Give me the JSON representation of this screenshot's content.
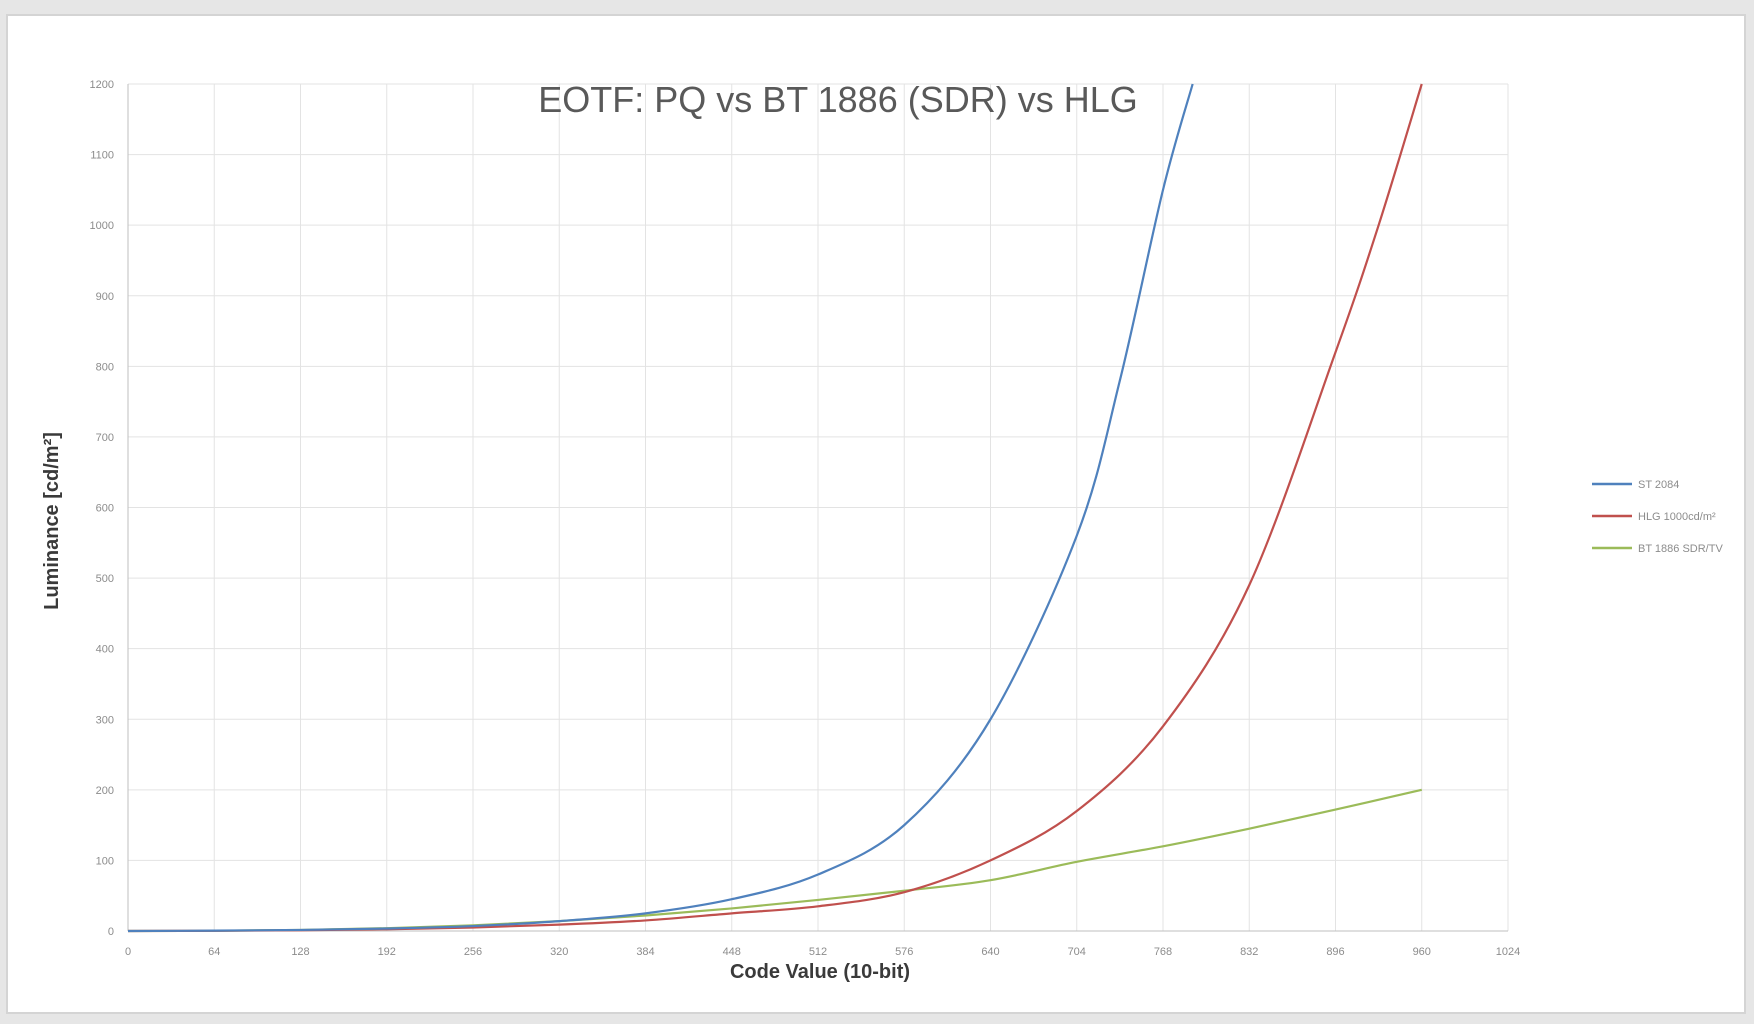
{
  "chart_data": {
    "type": "line",
    "title": "EOTF: PQ vs BT 1886 (SDR) vs HLG",
    "xlabel": "Code Value (10-bit)",
    "ylabel": "Luminance [cd/m²]",
    "xlim": [
      0,
      1024
    ],
    "ylim": [
      0,
      1200
    ],
    "x_ticks": [
      "0",
      "64",
      "128",
      "192",
      "256",
      "320",
      "384",
      "448",
      "512",
      "576",
      "640",
      "704",
      "768",
      "832",
      "896",
      "960",
      "1024"
    ],
    "y_ticks": [
      "0",
      "100",
      "200",
      "300",
      "400",
      "500",
      "600",
      "700",
      "800",
      "900",
      "1000",
      "1100",
      "1200"
    ],
    "grid": true,
    "legend_position": "right",
    "series": [
      {
        "name": "ST 2084",
        "color": "#4f81bd",
        "x": [
          0,
          64,
          128,
          192,
          256,
          320,
          384,
          448,
          512,
          576,
          640,
          704,
          736,
          768,
          790
        ],
        "y": [
          0,
          0.5,
          1.5,
          3.5,
          7,
          14,
          25,
          45,
          80,
          150,
          300,
          560,
          780,
          1050,
          1200
        ]
      },
      {
        "name": "HLG 1000cd/m²",
        "color": "#c0504d",
        "x": [
          0,
          64,
          128,
          192,
          256,
          320,
          384,
          448,
          512,
          576,
          640,
          704,
          768,
          832,
          896,
          928,
          960
        ],
        "y": [
          0,
          0.3,
          1,
          2.5,
          5,
          9,
          15,
          25,
          35,
          55,
          100,
          170,
          290,
          490,
          820,
          1000,
          1200
        ]
      },
      {
        "name": "BT 1886 SDR/TV",
        "color": "#9bbb59",
        "x": [
          0,
          64,
          128,
          192,
          256,
          320,
          384,
          448,
          512,
          576,
          640,
          704,
          768,
          832,
          896,
          960
        ],
        "y": [
          0,
          0.3,
          1.5,
          4,
          8,
          14,
          22,
          32,
          44,
          57,
          72,
          98,
          120,
          145,
          172,
          200
        ]
      }
    ]
  }
}
